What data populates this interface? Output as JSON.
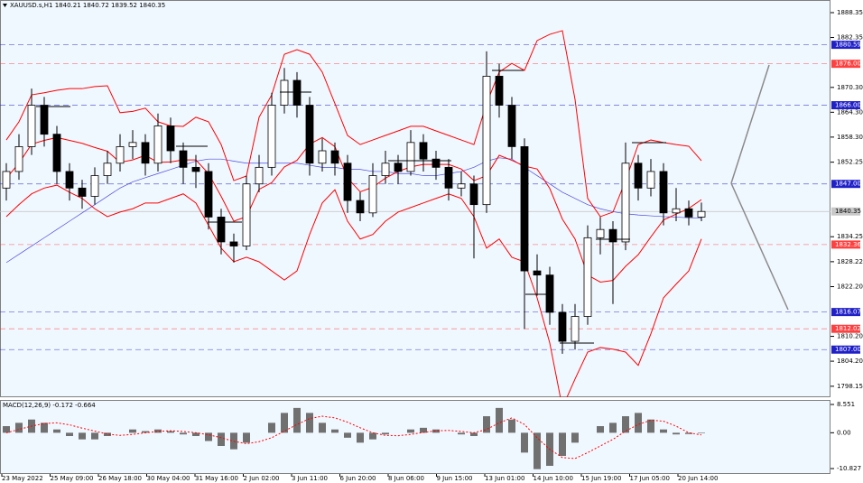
{
  "header": "XAUUSD.s,H1  1840.21 1840.72 1839.52 1840.35",
  "chart_data": [
    {
      "type": "candlestick",
      "ylim": [
        1795.5,
        1891.4
      ],
      "yticks": [
        1888.35,
        1882.35,
        {
          "value": 1870.3,
          "label": "1870.30"
        },
        {
          "value": 1864.3,
          "label": "1864.30"
        },
        {
          "value": 1858.3,
          "label": "1858.30"
        },
        1852.25,
        1834.25,
        1828.22,
        {
          "value": 1822.2,
          "label": "1822.20"
        },
        {
          "value": 1810.2,
          "label": "1810.20"
        },
        {
          "value": 1804.2,
          "label": "1804.20"
        },
        1798.15
      ],
      "x_tick_labels": [
        "23 May 2022",
        "25 May 09:00",
        "26 May 18:00",
        "30 May 04:00",
        "31 May 16:00",
        "2 Jun 02:00",
        "3 Jun 11:00",
        "6 Jun 20:00",
        "8 Jun 06:00",
        "9 Jun 15:00",
        "13 Jun 01:00",
        "14 Jun 10:00",
        "15 Jun 19:00",
        "17 Jun 05:00",
        "20 Jun 14:00"
      ],
      "ohlc": [
        [
          1846,
          1852,
          1843,
          1850
        ],
        [
          1850,
          1859,
          1848,
          1856
        ],
        [
          1856,
          1870,
          1854,
          1866
        ],
        [
          1866,
          1868,
          1856,
          1859
        ],
        [
          1859,
          1861,
          1847,
          1850
        ],
        [
          1850,
          1852,
          1843,
          1846
        ],
        [
          1846,
          1848,
          1841,
          1844
        ],
        [
          1844,
          1851,
          1842,
          1849
        ],
        [
          1849,
          1855,
          1847,
          1852
        ],
        [
          1852,
          1859,
          1850,
          1856
        ],
        [
          1856,
          1860,
          1853,
          1857
        ],
        [
          1857,
          1859,
          1849,
          1852
        ],
        [
          1852,
          1864,
          1850,
          1861
        ],
        [
          1861,
          1863,
          1852,
          1855
        ],
        [
          1855,
          1857,
          1847,
          1851
        ],
        [
          1851,
          1854,
          1846,
          1850
        ],
        [
          1850,
          1852,
          1836,
          1839
        ],
        [
          1839,
          1841,
          1830,
          1833
        ],
        [
          1833,
          1835,
          1828,
          1832
        ],
        [
          1832,
          1849,
          1831,
          1847
        ],
        [
          1847,
          1854,
          1845,
          1851
        ],
        [
          1851,
          1869,
          1849,
          1866
        ],
        [
          1866,
          1875,
          1864,
          1872
        ],
        [
          1872,
          1874,
          1863,
          1866
        ],
        [
          1866,
          1868,
          1849,
          1852
        ],
        [
          1852,
          1858,
          1850,
          1855
        ],
        [
          1855,
          1857,
          1849,
          1852
        ],
        [
          1852,
          1854,
          1840,
          1843
        ],
        [
          1843,
          1845,
          1838,
          1840
        ],
        [
          1840,
          1852,
          1839,
          1849
        ],
        [
          1849,
          1855,
          1847,
          1852
        ],
        [
          1852,
          1854,
          1847,
          1850
        ],
        [
          1850,
          1860,
          1849,
          1857
        ],
        [
          1857,
          1859,
          1850,
          1853
        ],
        [
          1853,
          1855,
          1848,
          1851
        ],
        [
          1851,
          1853,
          1843,
          1846
        ],
        [
          1846,
          1850,
          1844,
          1847
        ],
        [
          1847,
          1849,
          1829,
          1842
        ],
        [
          1842,
          1879,
          1840,
          1873
        ],
        [
          1873,
          1876,
          1863,
          1866
        ],
        [
          1866,
          1868,
          1853,
          1856
        ],
        [
          1856,
          1858,
          1812,
          1826
        ],
        [
          1826,
          1830,
          1820,
          1825
        ],
        [
          1825,
          1827,
          1813,
          1816
        ],
        [
          1816,
          1818,
          1806,
          1809
        ],
        [
          1809,
          1818,
          1807,
          1815
        ],
        [
          1815,
          1837,
          1813,
          1834
        ],
        [
          1834,
          1839,
          1830,
          1836
        ],
        [
          1836,
          1838,
          1818,
          1833
        ],
        [
          1833,
          1857,
          1831,
          1852
        ],
        [
          1852,
          1854,
          1843,
          1846
        ],
        [
          1846,
          1853,
          1844,
          1850
        ],
        [
          1850,
          1852,
          1837,
          1840
        ],
        [
          1840,
          1846,
          1838,
          1841
        ],
        [
          1841,
          1843,
          1837,
          1839
        ],
        [
          1839,
          1842.5,
          1838,
          1840.35
        ]
      ],
      "bands": {
        "color": "#ff0000",
        "upper": [
          1857.6,
          1862,
          1868.5,
          1869,
          1869.6,
          1870,
          1870,
          1870.5,
          1870.7,
          1864.2,
          1864.5,
          1865.3,
          1862,
          1861,
          1860.9,
          1863.1,
          1862,
          1856.5,
          1847.8,
          1848.9,
          1863.1,
          1868.5,
          1878.3,
          1879.4,
          1878.3,
          1874,
          1866.4,
          1858.7,
          1856.5,
          1857.6,
          1858.7,
          1859.8,
          1860.9,
          1860.9,
          1859.8,
          1858.7,
          1857.6,
          1856.5,
          1866.4,
          1874,
          1876.1,
          1874.4,
          1881.6,
          1883.1,
          1884,
          1867.4,
          1843.5,
          1839.1,
          1840.2,
          1847.8,
          1856.5,
          1857.6,
          1857,
          1856.5,
          1856.1,
          1852.6
        ],
        "middle": [
          1848.4,
          1852,
          1856.6,
          1857.5,
          1858.2,
          1857.5,
          1856.8,
          1855.8,
          1854.9,
          1852.2,
          1852.8,
          1853.9,
          1852.2,
          1852.3,
          1852.8,
          1852.8,
          1849.5,
          1844,
          1838,
          1839.1,
          1845.7,
          1847.3,
          1851.1,
          1852.7,
          1856.6,
          1858.2,
          1856,
          1848.4,
          1845.1,
          1846.2,
          1848.4,
          1850,
          1851.1,
          1851.7,
          1851.7,
          1851.7,
          1850.6,
          1847.8,
          1849,
          1853.9,
          1852.7,
          1851.3,
          1850.6,
          1845.9,
          1838.5,
          1833.7,
          1825,
          1823.3,
          1823.7,
          1827.1,
          1829.9,
          1834.2,
          1838.3,
          1839.7,
          1841.1,
          1843.2
        ],
        "lower": [
          1839.1,
          1842,
          1844.6,
          1846,
          1846.7,
          1845,
          1843.5,
          1841,
          1839.1,
          1840.2,
          1841,
          1842.4,
          1842.4,
          1843.5,
          1844.6,
          1842.4,
          1837,
          1831.5,
          1828.2,
          1829.3,
          1828.2,
          1826,
          1823.8,
          1826,
          1834.8,
          1842.4,
          1845.6,
          1838,
          1833.7,
          1834.8,
          1838,
          1840.2,
          1841.3,
          1842.4,
          1843.5,
          1844.6,
          1843.5,
          1839.1,
          1831.5,
          1833.7,
          1829.3,
          1828.2,
          1819.5,
          1808.6,
          1793,
          1799.9,
          1806.4,
          1807.5,
          1807.1,
          1806.4,
          1803.2,
          1810.8,
          1819.5,
          1822.8,
          1826,
          1833.7
        ]
      },
      "ma": {
        "color": "#4a4ae0",
        "values": [
          1828,
          1830,
          1832,
          1834,
          1836,
          1838,
          1840,
          1842,
          1844,
          1846,
          1847.5,
          1848.5,
          1849.5,
          1850.5,
          1851.5,
          1852.5,
          1853,
          1853,
          1852.5,
          1852,
          1852,
          1852,
          1852,
          1852,
          1851.5,
          1851,
          1851,
          1850.5,
          1850.5,
          1850,
          1850,
          1849.5,
          1849.5,
          1849,
          1849,
          1849.5,
          1850,
          1851,
          1852.5,
          1853.3,
          1853,
          1851,
          1849,
          1847,
          1845,
          1843.5,
          1842,
          1841,
          1840.3,
          1839.8,
          1839.5,
          1839.3,
          1839.1,
          1839,
          1838.8,
          1838.7
        ]
      },
      "levels": [
        {
          "value": 1880.59,
          "label": "1880.59",
          "color": "#2020c8"
        },
        {
          "value": 1876,
          "label": "1876.00",
          "color": "#ff4040"
        },
        {
          "value": 1866,
          "label": "1866.00",
          "color": "#2020c8"
        },
        {
          "value": 1847,
          "label": "1847.00",
          "color": "#2020c8"
        },
        {
          "value": 1840.35,
          "label": "1840.35",
          "color": "#c8c8c8"
        },
        {
          "value": 1832.36,
          "label": "1832.36",
          "color": "#ff4040"
        },
        {
          "value": 1816.07,
          "label": "1816.07",
          "color": "#2020c8"
        },
        {
          "value": 1812.02,
          "label": "1812.02",
          "color": "#ff4040"
        },
        {
          "value": 1807,
          "label": "1807.00",
          "color": "#2020c8"
        }
      ]
    },
    {
      "type": "macd",
      "title": "MACD(12,26,9) -0.172 -0.664",
      "ylim": [
        -12.46,
        9.92
      ],
      "yticks": [
        8.551,
        {
          "value": 0,
          "label": "0.00"
        },
        -10.827
      ],
      "histogram": {
        "color": "#707070",
        "values": [
          2,
          3,
          4,
          3,
          1,
          -1,
          -2,
          -2,
          -1,
          0,
          1,
          0.5,
          1,
          0.5,
          -0.5,
          -1,
          -2.5,
          -4,
          -5,
          -3,
          0,
          3,
          6,
          7.5,
          6,
          3,
          1,
          -1.5,
          -3,
          -2,
          -0.5,
          0,
          1,
          1.5,
          1,
          0,
          -0.5,
          -1,
          5,
          7.5,
          4,
          -6,
          -11,
          -10,
          -7,
          -3,
          0,
          2,
          3,
          5,
          6,
          4,
          1,
          -0.5,
          -0.4,
          -0.172
        ]
      },
      "signal": {
        "color": "#ff0000",
        "values": [
          0,
          1,
          2,
          2.8,
          3,
          2.4,
          1.4,
          0.5,
          -0.4,
          -0.8,
          -0.5,
          0,
          0.4,
          0.6,
          0.4,
          0,
          -0.6,
          -1.5,
          -2.6,
          -3.3,
          -2.7,
          -1.5,
          0.5,
          2.5,
          4.3,
          5,
          4.5,
          3.2,
          1.5,
          0,
          -0.8,
          -0.9,
          -0.5,
          0.1,
          0.6,
          0.7,
          0.4,
          0,
          1,
          3,
          4.5,
          2.5,
          -1.5,
          -5,
          -7.5,
          -7.8,
          -6,
          -4,
          -2,
          0.5,
          2.5,
          3.8,
          3.5,
          2,
          0,
          -0.664
        ]
      }
    }
  ]
}
